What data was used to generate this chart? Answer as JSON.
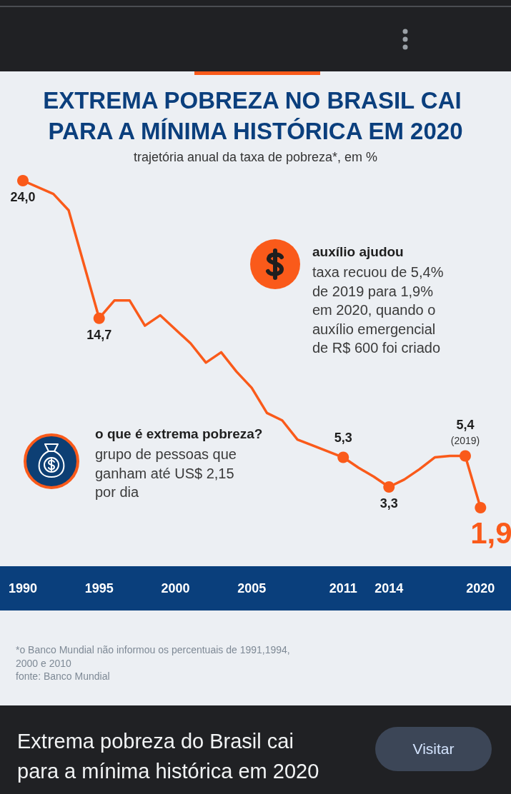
{
  "chart_data": {
    "type": "line",
    "title": "EXTREMA POBREZA NO BRASIL CAI PARA A MÍNIMA HISTÓRICA EM 2020",
    "subtitle": "trajetória anual da taxa de pobreza*, em %",
    "series": [
      {
        "color": "#fa5a1a",
        "marker": "none",
        "x": [
          1990,
          1992,
          1993,
          1995,
          1996,
          1997,
          1998,
          1999,
          2001,
          2002,
          2003,
          2004,
          2005,
          2006,
          2007,
          2008,
          2009,
          2011,
          2012,
          2013,
          2014,
          2015,
          2016,
          2017,
          2018,
          2019,
          2020
        ],
        "values": [
          24.0,
          23.1,
          22.0,
          14.7,
          15.9,
          15.9,
          14.2,
          14.9,
          13.0,
          11.7,
          12.4,
          11.1,
          10.0,
          8.3,
          7.8,
          6.5,
          6.1,
          5.3,
          4.6,
          4.0,
          3.3,
          3.8,
          4.5,
          5.3,
          5.4,
          5.4,
          1.9
        ]
      },
      {
        "type": "scatter",
        "color": "#fa5a1a",
        "marker": "circle",
        "x": [
          1990,
          1995,
          2011,
          2014,
          2019,
          2020
        ],
        "values": [
          24.0,
          14.7,
          5.3,
          3.3,
          5.4,
          1.9
        ],
        "value_labels": [
          "24,0",
          "14,7",
          "5,3",
          "3,3",
          "5,4",
          "1,9"
        ]
      }
    ],
    "xlim": [
      1988.5,
      2022
    ],
    "xticks": [
      1990,
      1995,
      2000,
      2005,
      2011,
      2014,
      2020
    ],
    "tick_labels": "x",
    "annotations": [
      {
        "text": "(2019)",
        "x": 2019,
        "y": 5.4
      },
      "auxílio ajudou",
      "taxa recuou de 5,4% de 2019 para 1,9% em 2020, quando o auxílio emergencial de R$ 600 foi criado",
      "o que é extrema pobreza?",
      "grupo de pessoas que ganham até US$ 2,15 por dia",
      "*o Banco Mundial não informou os percentuais de 1991,1994, 2000 e 2010",
      "fonte: Banco Mundial",
      "Extrema pobreza do Brasil cai para a mínima histórica em 2020",
      "Visitar"
    ]
  }
}
